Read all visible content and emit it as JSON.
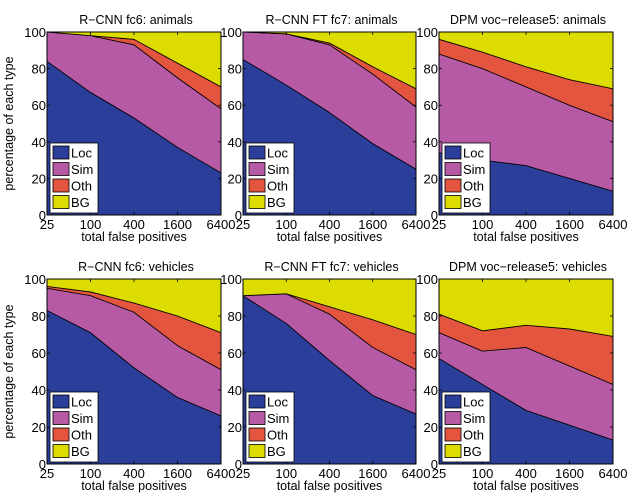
{
  "figure": {
    "ylabel": "percentage of each type",
    "xlabel": "total false positives"
  },
  "colors": {
    "Loc": "#2B3F9A",
    "Sim": "#B65AA6",
    "Oth": "#E4553F",
    "BG": "#DCDC00"
  },
  "chart_data": [
    {
      "type": "area",
      "stacked": true,
      "title": "R−CNN fc6: animals",
      "xlabel": "total false positives",
      "ylabel": "percentage of each type",
      "x": [
        25,
        100,
        400,
        1600,
        6400
      ],
      "x_tick_labels": [
        "25",
        "100",
        "400",
        "1600",
        "6400"
      ],
      "x_scale": "log",
      "ylim": [
        0,
        100
      ],
      "y_ticks": [
        0,
        20,
        40,
        60,
        80,
        100
      ],
      "legend": [
        "Loc",
        "Sim",
        "Oth",
        "BG"
      ],
      "legend_position": "bottom-left",
      "series": [
        {
          "name": "Loc",
          "values": [
            84,
            67,
            53,
            37,
            23
          ]
        },
        {
          "name": "Sim",
          "values": [
            16,
            31,
            40,
            38,
            35
          ]
        },
        {
          "name": "Oth",
          "values": [
            0,
            0,
            3,
            8,
            12
          ]
        },
        {
          "name": "BG",
          "values": [
            0,
            2,
            4,
            17,
            30
          ]
        }
      ]
    },
    {
      "type": "area",
      "stacked": true,
      "title": "R−CNN FT fc7: animals",
      "xlabel": "total false positives",
      "ylabel": "",
      "x": [
        25,
        100,
        400,
        1600,
        6400
      ],
      "x_tick_labels": [
        "25",
        "100",
        "400",
        "1600",
        "6400"
      ],
      "x_scale": "log",
      "ylim": [
        0,
        100
      ],
      "y_ticks": [
        0,
        20,
        40,
        60,
        80,
        100
      ],
      "legend": [
        "Loc",
        "Sim",
        "Oth",
        "BG"
      ],
      "legend_position": "bottom-left",
      "series": [
        {
          "name": "Loc",
          "values": [
            85,
            71,
            56,
            39,
            25
          ]
        },
        {
          "name": "Sim",
          "values": [
            15,
            28,
            37,
            38,
            34
          ]
        },
        {
          "name": "Oth",
          "values": [
            0,
            0,
            1,
            4,
            10
          ]
        },
        {
          "name": "BG",
          "values": [
            0,
            1,
            6,
            19,
            31
          ]
        }
      ]
    },
    {
      "type": "area",
      "stacked": true,
      "title": "DPM voc−release5: animals",
      "xlabel": "total false positives",
      "ylabel": "",
      "x": [
        25,
        100,
        400,
        1600,
        6400
      ],
      "x_tick_labels": [
        "25",
        "100",
        "400",
        "1600",
        "6400"
      ],
      "x_scale": "log",
      "ylim": [
        0,
        100
      ],
      "y_ticks": [
        0,
        20,
        40,
        60,
        80,
        100
      ],
      "legend": [
        "Loc",
        "Sim",
        "Oth",
        "BG"
      ],
      "legend_position": "bottom-left",
      "series": [
        {
          "name": "Loc",
          "values": [
            34,
            30,
            27,
            20,
            13
          ]
        },
        {
          "name": "Sim",
          "values": [
            54,
            50,
            43,
            40,
            38
          ]
        },
        {
          "name": "Oth",
          "values": [
            8,
            9,
            11,
            14,
            18
          ]
        },
        {
          "name": "BG",
          "values": [
            4,
            11,
            19,
            26,
            31
          ]
        }
      ]
    },
    {
      "type": "area",
      "stacked": true,
      "title": "R−CNN fc6: vehicles",
      "xlabel": "total false positives",
      "ylabel": "percentage of each type",
      "x": [
        25,
        100,
        400,
        1600,
        6400
      ],
      "x_tick_labels": [
        "25",
        "100",
        "400",
        "1600",
        "6400"
      ],
      "x_scale": "log",
      "ylim": [
        0,
        100
      ],
      "y_ticks": [
        0,
        20,
        40,
        60,
        80,
        100
      ],
      "legend": [
        "Loc",
        "Sim",
        "Oth",
        "BG"
      ],
      "legend_position": "bottom-left",
      "series": [
        {
          "name": "Loc",
          "values": [
            83,
            71,
            52,
            36,
            26
          ]
        },
        {
          "name": "Sim",
          "values": [
            12,
            20,
            30,
            28,
            25
          ]
        },
        {
          "name": "Oth",
          "values": [
            1,
            2,
            5,
            16,
            20
          ]
        },
        {
          "name": "BG",
          "values": [
            4,
            7,
            13,
            20,
            29
          ]
        }
      ]
    },
    {
      "type": "area",
      "stacked": true,
      "title": "R−CNN FT fc7: vehicles",
      "xlabel": "total false positives",
      "ylabel": "",
      "x": [
        25,
        100,
        400,
        1600,
        6400
      ],
      "x_tick_labels": [
        "25",
        "100",
        "400",
        "1600",
        "6400"
      ],
      "x_scale": "log",
      "ylim": [
        0,
        100
      ],
      "y_ticks": [
        0,
        20,
        40,
        60,
        80,
        100
      ],
      "legend": [
        "Loc",
        "Sim",
        "Oth",
        "BG"
      ],
      "legend_position": "bottom-left",
      "series": [
        {
          "name": "Loc",
          "values": [
            91,
            76,
            56,
            37,
            27
          ]
        },
        {
          "name": "Sim",
          "values": [
            0,
            16,
            25,
            26,
            24
          ]
        },
        {
          "name": "Oth",
          "values": [
            0,
            0,
            4,
            15,
            19
          ]
        },
        {
          "name": "BG",
          "values": [
            9,
            8,
            15,
            22,
            30
          ]
        }
      ]
    },
    {
      "type": "area",
      "stacked": true,
      "title": "DPM voc−release5: vehicles",
      "xlabel": "total false positives",
      "ylabel": "",
      "x": [
        25,
        100,
        400,
        1600,
        6400
      ],
      "x_tick_labels": [
        "25",
        "100",
        "400",
        "1600",
        "6400"
      ],
      "x_scale": "log",
      "ylim": [
        0,
        100
      ],
      "y_ticks": [
        0,
        20,
        40,
        60,
        80,
        100
      ],
      "legend": [
        "Loc",
        "Sim",
        "Oth",
        "BG"
      ],
      "legend_position": "bottom-left",
      "series": [
        {
          "name": "Loc",
          "values": [
            57,
            43,
            29,
            21,
            13
          ]
        },
        {
          "name": "Sim",
          "values": [
            14,
            18,
            34,
            32,
            30
          ]
        },
        {
          "name": "Oth",
          "values": [
            10,
            11,
            12,
            20,
            26
          ]
        },
        {
          "name": "BG",
          "values": [
            19,
            28,
            25,
            27,
            31
          ]
        }
      ]
    }
  ]
}
